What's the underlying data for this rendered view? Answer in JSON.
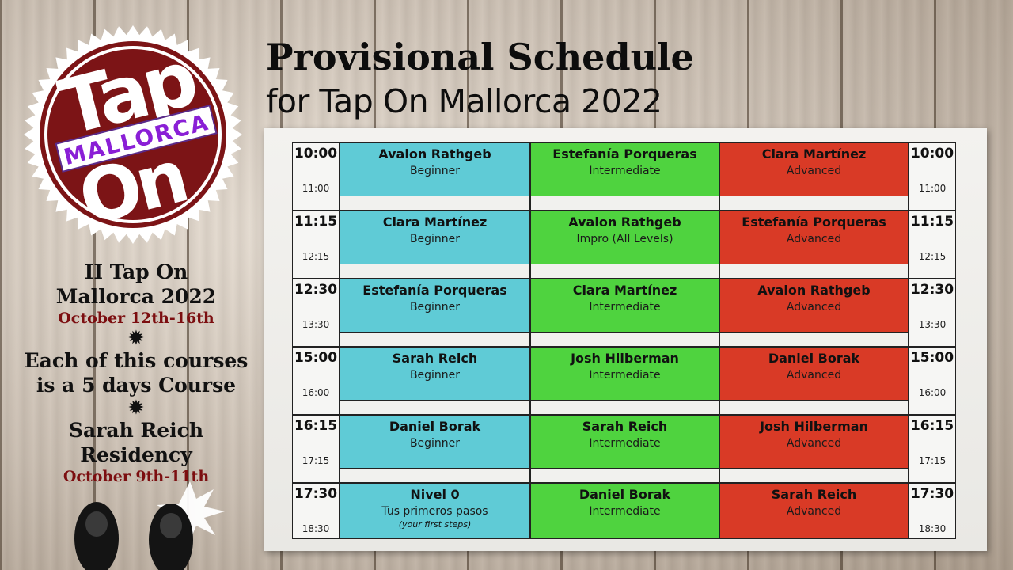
{
  "logo": {
    "word_top": "Tap",
    "word_band": "MALLORCA",
    "word_bottom": "On"
  },
  "title": "Provisional Schedule",
  "subtitle": "for Tap On Mallorca 2022",
  "info": {
    "edition_line1": "II Tap On",
    "edition_line2": "Mallorca 2022",
    "dates": "October 12th-16th",
    "courses_line1": "Each of this courses",
    "courses_line2": "is a 5 days Course",
    "residency": "Sarah Reich Residency",
    "residency_dates": "October 9th-11th"
  },
  "colors": {
    "beginner": "#5fcbd6",
    "intermediate": "#4fd33f",
    "advanced": "#d93a26",
    "brand": "#7c0e10"
  },
  "schedule": [
    {
      "start": "10:00",
      "end": "11:00",
      "c1": {
        "teacher": "Avalon Rathgeb",
        "level": "Beginner"
      },
      "c2": {
        "teacher": "Estefanía Porqueras",
        "level": "Intermediate"
      },
      "c3": {
        "teacher": "Clara Martínez",
        "level": "Advanced"
      }
    },
    {
      "start": "11:15",
      "end": "12:15",
      "c1": {
        "teacher": "Clara Martínez",
        "level": "Beginner"
      },
      "c2": {
        "teacher": "Avalon Rathgeb",
        "level": "Impro (All Levels)"
      },
      "c3": {
        "teacher": "Estefanía Porqueras",
        "level": "Advanced"
      }
    },
    {
      "start": "12:30",
      "end": "13:30",
      "c1": {
        "teacher": "Estefanía Porqueras",
        "level": "Beginner"
      },
      "c2": {
        "teacher": "Clara Martínez",
        "level": "Intermediate"
      },
      "c3": {
        "teacher": "Avalon Rathgeb",
        "level": "Advanced"
      }
    },
    {
      "start": "15:00",
      "end": "16:00",
      "c1": {
        "teacher": "Sarah Reich",
        "level": "Beginner"
      },
      "c2": {
        "teacher": "Josh Hilberman",
        "level": "Intermediate"
      },
      "c3": {
        "teacher": "Daniel Borak",
        "level": "Advanced"
      }
    },
    {
      "start": "16:15",
      "end": "17:15",
      "c1": {
        "teacher": "Daniel Borak",
        "level": "Beginner"
      },
      "c2": {
        "teacher": "Sarah Reich",
        "level": "Intermediate"
      },
      "c3": {
        "teacher": "Josh Hilberman",
        "level": "Advanced"
      }
    },
    {
      "start": "17:30",
      "end": "18:30",
      "c1": {
        "teacher": "Nivel 0",
        "level": "Tus primeros pasos",
        "note": "(your first steps)"
      },
      "c2": {
        "teacher": "Daniel Borak",
        "level": "Intermediate"
      },
      "c3": {
        "teacher": "Sarah Reich",
        "level": "Advanced"
      }
    }
  ]
}
